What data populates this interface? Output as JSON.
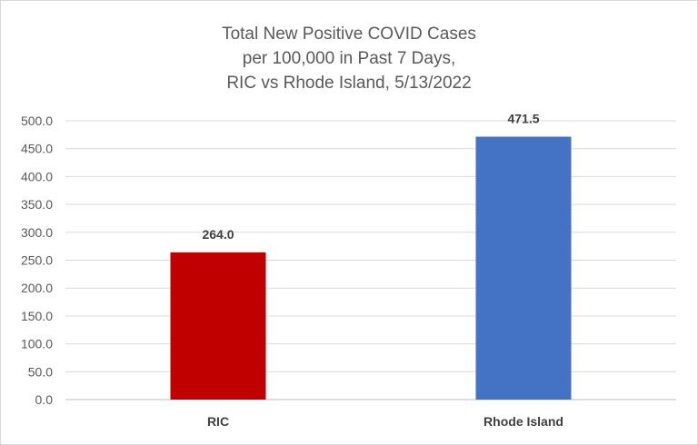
{
  "chart_data": {
    "type": "bar",
    "title_lines": [
      "Total New Positive COVID Cases",
      "per 100,000 in Past 7 Days,",
      "RIC vs Rhode Island, 5/13/2022"
    ],
    "categories": [
      "RIC",
      "Rhode Island"
    ],
    "values": [
      264.0,
      471.5
    ],
    "data_labels": [
      "264.0",
      "471.5"
    ],
    "bar_colors": [
      "#C00000",
      "#4472C4"
    ],
    "ylim": [
      0,
      500
    ],
    "yticks": [
      "0.0",
      "50.0",
      "100.0",
      "150.0",
      "200.0",
      "250.0",
      "300.0",
      "350.0",
      "400.0",
      "450.0",
      "500.0"
    ],
    "grid": true,
    "legend": "none",
    "xlabel": "",
    "ylabel": ""
  }
}
